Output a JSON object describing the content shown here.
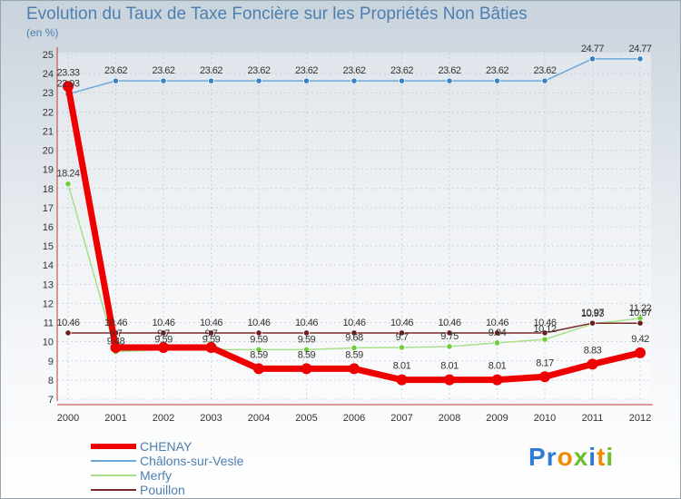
{
  "chart_data": {
    "type": "line",
    "title": "Evolution du Taux de Taxe Foncière sur les Propriétés Non Bâties",
    "subtitle": "(en %)",
    "categories": [
      "2000",
      "2001",
      "2002",
      "2003",
      "2004",
      "2005",
      "2006",
      "2007",
      "2008",
      "2009",
      "2010",
      "2011",
      "2012"
    ],
    "yticks": [
      "7",
      "8",
      "9",
      "10",
      "11",
      "12",
      "13",
      "14",
      "15",
      "16",
      "17",
      "18",
      "19",
      "20",
      "21",
      "22",
      "23",
      "24",
      "25"
    ],
    "ylim": [
      7,
      25
    ],
    "series": [
      {
        "name": "Châlons-sur-Vesle",
        "color": "#6ea8d8",
        "dot": "#3b82c4",
        "values": [
          22.93,
          23.62,
          23.62,
          23.62,
          23.62,
          23.62,
          23.62,
          23.62,
          23.62,
          23.62,
          23.62,
          24.77,
          24.77
        ],
        "labels": [
          "22.93",
          "23.62",
          "23.62",
          "23.62",
          "23.62",
          "23.62",
          "23.62",
          "23.62",
          "23.62",
          "23.62",
          "23.62",
          "24.77",
          "24.77"
        ]
      },
      {
        "name": "Merfy",
        "color": "#a8e08a",
        "dot": "#6fcc3c",
        "values": [
          18.24,
          9.48,
          9.59,
          9.59,
          9.59,
          9.59,
          9.68,
          9.7,
          9.75,
          9.94,
          10.12,
          10.93,
          11.22
        ],
        "labels": [
          "18.24",
          "9.48",
          "9.59",
          "9.59",
          "9.59",
          "9.59",
          "9.68",
          "9.7",
          "9.75",
          "9.94",
          "10.12",
          "10.93",
          "11.22"
        ]
      },
      {
        "name": "Pouillon",
        "color": "#7b2a2a",
        "dot": "#6b1e1e",
        "values": [
          10.46,
          10.46,
          10.46,
          10.46,
          10.46,
          10.46,
          10.46,
          10.46,
          10.46,
          10.46,
          10.46,
          10.97,
          10.97
        ],
        "labels": [
          "10.46",
          "10.46",
          "10.46",
          "10.46",
          "10.46",
          "10.46",
          "10.46",
          "10.46",
          "10.46",
          "10.46",
          "10.46",
          "10.97",
          "10.97"
        ]
      },
      {
        "name": "CHENAY",
        "color": "#ee0000",
        "dot": "#ee0000",
        "values": [
          23.33,
          9.7,
          9.7,
          9.7,
          8.59,
          8.59,
          8.59,
          8.01,
          8.01,
          8.01,
          8.17,
          8.83,
          9.42
        ],
        "labels": [
          "23.33",
          "9.7",
          "9.7",
          "9.7",
          "8.59",
          "8.59",
          "8.59",
          "8.01",
          "8.01",
          "8.01",
          "8.17",
          "8.83",
          "9.42"
        ]
      }
    ],
    "legend": [
      "CHENAY",
      "Châlons-sur-Vesle",
      "Merfy",
      "Pouillon"
    ]
  },
  "logo": {
    "text": "Proxiti",
    "letters": [
      "P",
      "r",
      "o",
      "x",
      "i",
      "t",
      "i"
    ],
    "colors": [
      "#2e7bd6",
      "#2e7bd6",
      "#f08a00",
      "#6bbf2a",
      "#2e7bd6",
      "#f08a00",
      "#6bbf2a"
    ]
  }
}
